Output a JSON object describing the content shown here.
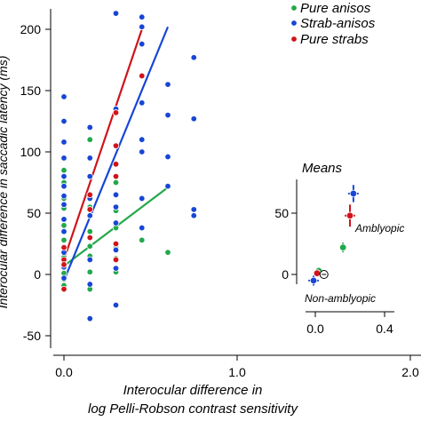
{
  "chart_data": [
    {
      "type": "scatter",
      "title": "",
      "xlabel_line1": "Interocular difference in",
      "xlabel_line2": "log Pelli-Robson contrast sensitivity",
      "ylabel": "Interocular difference in saccadic latency (ms)",
      "xlim": [
        -0.05,
        2.0
      ],
      "ylim": [
        -55,
        220
      ],
      "xticks": [
        0.0,
        1.0,
        2.0
      ],
      "xtick_labels": [
        "0.0",
        "1.0",
        "2.0"
      ],
      "yticks": [
        -50,
        0,
        50,
        100,
        150,
        200
      ],
      "ytick_labels": [
        "-50",
        "0",
        "50",
        "100",
        "150",
        "200"
      ],
      "grid": false,
      "legend_position": "top-right",
      "series": [
        {
          "name": "Pure anisos",
          "color": "#22a84a",
          "points": [
            [
              0,
              85
            ],
            [
              0,
              75
            ],
            [
              0,
              62
            ],
            [
              0,
              54
            ],
            [
              0,
              40
            ],
            [
              0,
              28
            ],
            [
              0,
              21
            ],
            [
              0,
              14
            ],
            [
              0,
              9
            ],
            [
              0,
              5
            ],
            [
              0,
              1
            ],
            [
              0,
              -4
            ],
            [
              0,
              -9
            ],
            [
              0.15,
              110
            ],
            [
              0.15,
              65
            ],
            [
              0.15,
              55
            ],
            [
              0.15,
              35
            ],
            [
              0.15,
              23
            ],
            [
              0.15,
              15
            ],
            [
              0.15,
              2
            ],
            [
              0.15,
              -12
            ],
            [
              0.3,
              75
            ],
            [
              0.3,
              52
            ],
            [
              0.3,
              38
            ],
            [
              0.3,
              22
            ],
            [
              0.3,
              13
            ],
            [
              0.3,
              2
            ],
            [
              0.45,
              28
            ],
            [
              0.6,
              18
            ]
          ],
          "fit": {
            "x": [
              0.0,
              0.6
            ],
            "y": [
              7,
              71
            ]
          }
        },
        {
          "name": "Strab-anisos",
          "color": "#1746d6",
          "points": [
            [
              0,
              145
            ],
            [
              0,
              125
            ],
            [
              0,
              108
            ],
            [
              0,
              95
            ],
            [
              0,
              80
            ],
            [
              0,
              72
            ],
            [
              0,
              64
            ],
            [
              0,
              57
            ],
            [
              0,
              45
            ],
            [
              0,
              35
            ],
            [
              0,
              18
            ],
            [
              0,
              6
            ],
            [
              0,
              -3
            ],
            [
              0.15,
              120
            ],
            [
              0.15,
              95
            ],
            [
              0.15,
              80
            ],
            [
              0.15,
              62
            ],
            [
              0.15,
              48
            ],
            [
              0.15,
              30
            ],
            [
              0.15,
              12
            ],
            [
              0.15,
              -8
            ],
            [
              0.15,
              -36
            ],
            [
              0.3,
              213
            ],
            [
              0.3,
              135
            ],
            [
              0.3,
              65
            ],
            [
              0.3,
              55
            ],
            [
              0.3,
              42
            ],
            [
              0.3,
              20
            ],
            [
              0.3,
              5
            ],
            [
              0.3,
              -25
            ],
            [
              0.45,
              210
            ],
            [
              0.45,
              202
            ],
            [
              0.45,
              188
            ],
            [
              0.45,
              140
            ],
            [
              0.45,
              110
            ],
            [
              0.45,
              100
            ],
            [
              0.45,
              62
            ],
            [
              0.45,
              38
            ],
            [
              0.6,
              155
            ],
            [
              0.6,
              130
            ],
            [
              0.6,
              96
            ],
            [
              0.6,
              72
            ],
            [
              0.75,
              177
            ],
            [
              0.75,
              127
            ],
            [
              0.75,
              53
            ],
            [
              0.75,
              48
            ]
          ],
          "fit": {
            "x": [
              0.0,
              0.6
            ],
            "y": [
              -5,
              202
            ]
          }
        },
        {
          "name": "Pure strabs",
          "color": "#d0141a",
          "points": [
            [
              0,
              22
            ],
            [
              0,
              12
            ],
            [
              0,
              8
            ],
            [
              0,
              -12
            ],
            [
              0.15,
              65
            ],
            [
              0.15,
              53
            ],
            [
              0.15,
              30
            ],
            [
              0.3,
              132
            ],
            [
              0.3,
              105
            ],
            [
              0.3,
              90
            ],
            [
              0.3,
              80
            ],
            [
              0.3,
              25
            ],
            [
              0.3,
              12
            ],
            [
              0.45,
              162
            ]
          ],
          "fit": {
            "x": [
              0.0,
              0.45
            ],
            "y": [
              12,
              200
            ]
          }
        }
      ]
    },
    {
      "type": "scatter",
      "title": "Means",
      "xlim": [
        -0.05,
        0.5
      ],
      "ylim": [
        -15,
        78
      ],
      "xticks": [
        0.0,
        0.4
      ],
      "xtick_labels": [
        "0.0",
        "0.4"
      ],
      "yticks": [
        0,
        50
      ],
      "ytick_labels": [
        "0",
        "50"
      ],
      "annotations": [
        "Amblyopic",
        "Non-amblyopic"
      ],
      "series": [
        {
          "name": "Pure anisos",
          "color": "#22a84a",
          "points": [
            [
              0.02,
              3
            ],
            [
              0.16,
              22
            ]
          ],
          "xerr": [
            0.02,
            0.02
          ],
          "yerr": [
            3,
            4
          ]
        },
        {
          "name": "Strab-anisos",
          "color": "#1746d6",
          "points": [
            [
              -0.01,
              -5
            ],
            [
              0.22,
              66
            ]
          ],
          "xerr": [
            0.03,
            0.03
          ],
          "yerr": [
            4,
            7
          ]
        },
        {
          "name": "Pure strabs",
          "color": "#d0141a",
          "points": [
            [
              0.01,
              1
            ],
            [
              0.2,
              48
            ]
          ],
          "xerr": [
            0.02,
            0.03
          ],
          "yerr": [
            3,
            9
          ]
        },
        {
          "name": "",
          "color": "#000000",
          "marker": "hollow",
          "points": [
            [
              0.05,
              0
            ]
          ]
        }
      ]
    }
  ]
}
